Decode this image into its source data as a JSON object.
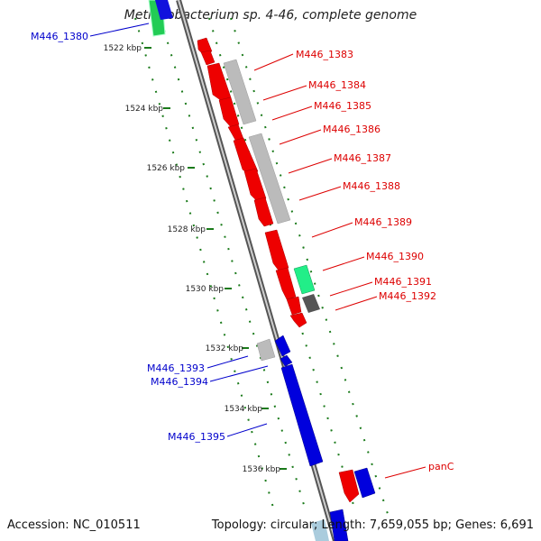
{
  "title": "Methylobacterium sp. 4-46, complete genome",
  "footer": {
    "accession": "Accession: NC_010511",
    "summary": "Topology: circular; Length: 7,659,055 bp; Genes: 6,691"
  },
  "scale_labels": [
    "1522 kbp",
    "1524 kbp",
    "1526 kbp",
    "1528 kbp",
    "1530 kbp",
    "1532 kbp",
    "1534 kbp",
    "1536 kbp"
  ],
  "gene_labels": {
    "left": [
      "M446_1380",
      "M446_1393",
      "M446_1394",
      "M446_1395"
    ],
    "right": [
      "M446_1383",
      "M446_1384",
      "M446_1385",
      "M446_1386",
      "M446_1387",
      "M446_1388",
      "M446_1389",
      "M446_1390",
      "M446_1391",
      "M446_1392",
      "panC"
    ]
  },
  "colors": {
    "forward": "#ff0000",
    "reverse": "#0000e0",
    "rna_green": "#22dd66",
    "rna_gray": "#999999",
    "label_forward": "#dd0000",
    "label_reverse": "#0000cc",
    "tick": "#1a7a1a"
  }
}
